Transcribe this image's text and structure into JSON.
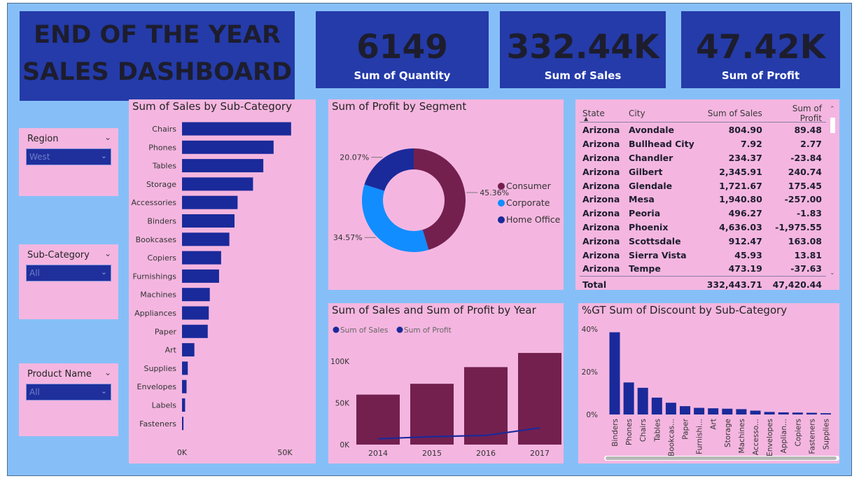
{
  "dashboard": {
    "title_line1": "END OF THE YEAR",
    "title_line2": "SALES DASHBOARD"
  },
  "kpis": [
    {
      "value": "6149",
      "label": "Sum of Quantity"
    },
    {
      "value": "332.44K",
      "label": "Sum of Sales"
    },
    {
      "value": "47.42K",
      "label": "Sum of Profit"
    }
  ],
  "slicers": [
    {
      "title": "Region",
      "value": "West"
    },
    {
      "title": "Sub-Category",
      "value": "All"
    },
    {
      "title": "Product Name",
      "value": "All"
    }
  ],
  "colors": {
    "background": "#86bff8",
    "panel": "#f4b6e0",
    "navy": "#243ba9",
    "bar_blue": "#1a2a9a",
    "maroon": "#73204f",
    "corporate": "#118dff",
    "home_office": "#1a2a9a"
  },
  "table": {
    "headers": [
      "State",
      "City",
      "Sum of Sales",
      "Sum of Profit"
    ],
    "rows": [
      [
        "Arizona",
        "Avondale",
        "804.90",
        "89.48"
      ],
      [
        "Arizona",
        "Bullhead City",
        "7.92",
        "2.77"
      ],
      [
        "Arizona",
        "Chandler",
        "234.37",
        "-23.84"
      ],
      [
        "Arizona",
        "Gilbert",
        "2,345.91",
        "240.74"
      ],
      [
        "Arizona",
        "Glendale",
        "1,721.67",
        "175.45"
      ],
      [
        "Arizona",
        "Mesa",
        "1,940.80",
        "-257.00"
      ],
      [
        "Arizona",
        "Peoria",
        "496.27",
        "-1.83"
      ],
      [
        "Arizona",
        "Phoenix",
        "4,636.03",
        "-1,975.55"
      ],
      [
        "Arizona",
        "Scottsdale",
        "912.47",
        "163.08"
      ],
      [
        "Arizona",
        "Sierra Vista",
        "45.93",
        "13.81"
      ],
      [
        "Arizona",
        "Tempe",
        "473.19",
        "-37.63"
      ]
    ],
    "total": [
      "Total",
      "",
      "332,443.71",
      "47,420.44"
    ]
  },
  "chart_data": [
    {
      "type": "bar",
      "orientation": "horizontal",
      "title": "Sum of Sales by Sub-Category",
      "categories": [
        "Chairs",
        "Phones",
        "Tables",
        "Storage",
        "Accessories",
        "Binders",
        "Bookcases",
        "Copiers",
        "Furnishings",
        "Machines",
        "Appliances",
        "Paper",
        "Art",
        "Supplies",
        "Envelopes",
        "Labels",
        "Fasteners"
      ],
      "values": [
        53000,
        44500,
        39500,
        34500,
        27000,
        25500,
        23000,
        19000,
        18000,
        13500,
        13000,
        12500,
        6000,
        2800,
        2200,
        1500,
        700
      ],
      "xlim": [
        0,
        55000
      ],
      "x_ticks": [
        "0K",
        "50K"
      ],
      "grid": false
    },
    {
      "type": "pie",
      "donut": true,
      "title": "Sum of Profit by Segment",
      "categories": [
        "Consumer",
        "Corporate",
        "Home Office"
      ],
      "values": [
        45.36,
        34.57,
        20.07
      ],
      "data_labels": [
        "45.36%",
        "34.57%",
        "20.07%"
      ],
      "legend_position": "right"
    },
    {
      "type": "bar",
      "title": "Sum of Sales and Sum of Profit by Year",
      "categories": [
        "2014",
        "2015",
        "2016",
        "2017"
      ],
      "series": [
        {
          "name": "Sum of Sales",
          "type": "bar",
          "values": [
            60000,
            73000,
            93000,
            110000
          ]
        },
        {
          "name": "Sum of Profit",
          "type": "line",
          "values": [
            7000,
            9500,
            11000,
            20000
          ]
        }
      ],
      "ylim": [
        0,
        120000
      ],
      "y_ticks": [
        "0K",
        "50K",
        "100K"
      ],
      "legend_position": "top-left",
      "grid": false
    },
    {
      "type": "bar",
      "title": "%GT Sum of Discount by Sub-Category",
      "categories": [
        "Binders",
        "Phones",
        "Chairs",
        "Tables",
        "Bookcas...",
        "Paper",
        "Furnishi...",
        "Art",
        "Storage",
        "Machines",
        "Accesso...",
        "Envelopes",
        "Applian...",
        "Copiers",
        "Fasteners",
        "Supplies"
      ],
      "values": [
        38.5,
        15,
        12.5,
        7.9,
        5.5,
        3.9,
        3.1,
        2.9,
        2.7,
        2.5,
        1.8,
        1.2,
        1.0,
        0.9,
        0.8,
        0.6
      ],
      "ylim": [
        0,
        40
      ],
      "y_ticks": [
        "0%",
        "20%",
        "40%"
      ],
      "grid": false
    }
  ]
}
